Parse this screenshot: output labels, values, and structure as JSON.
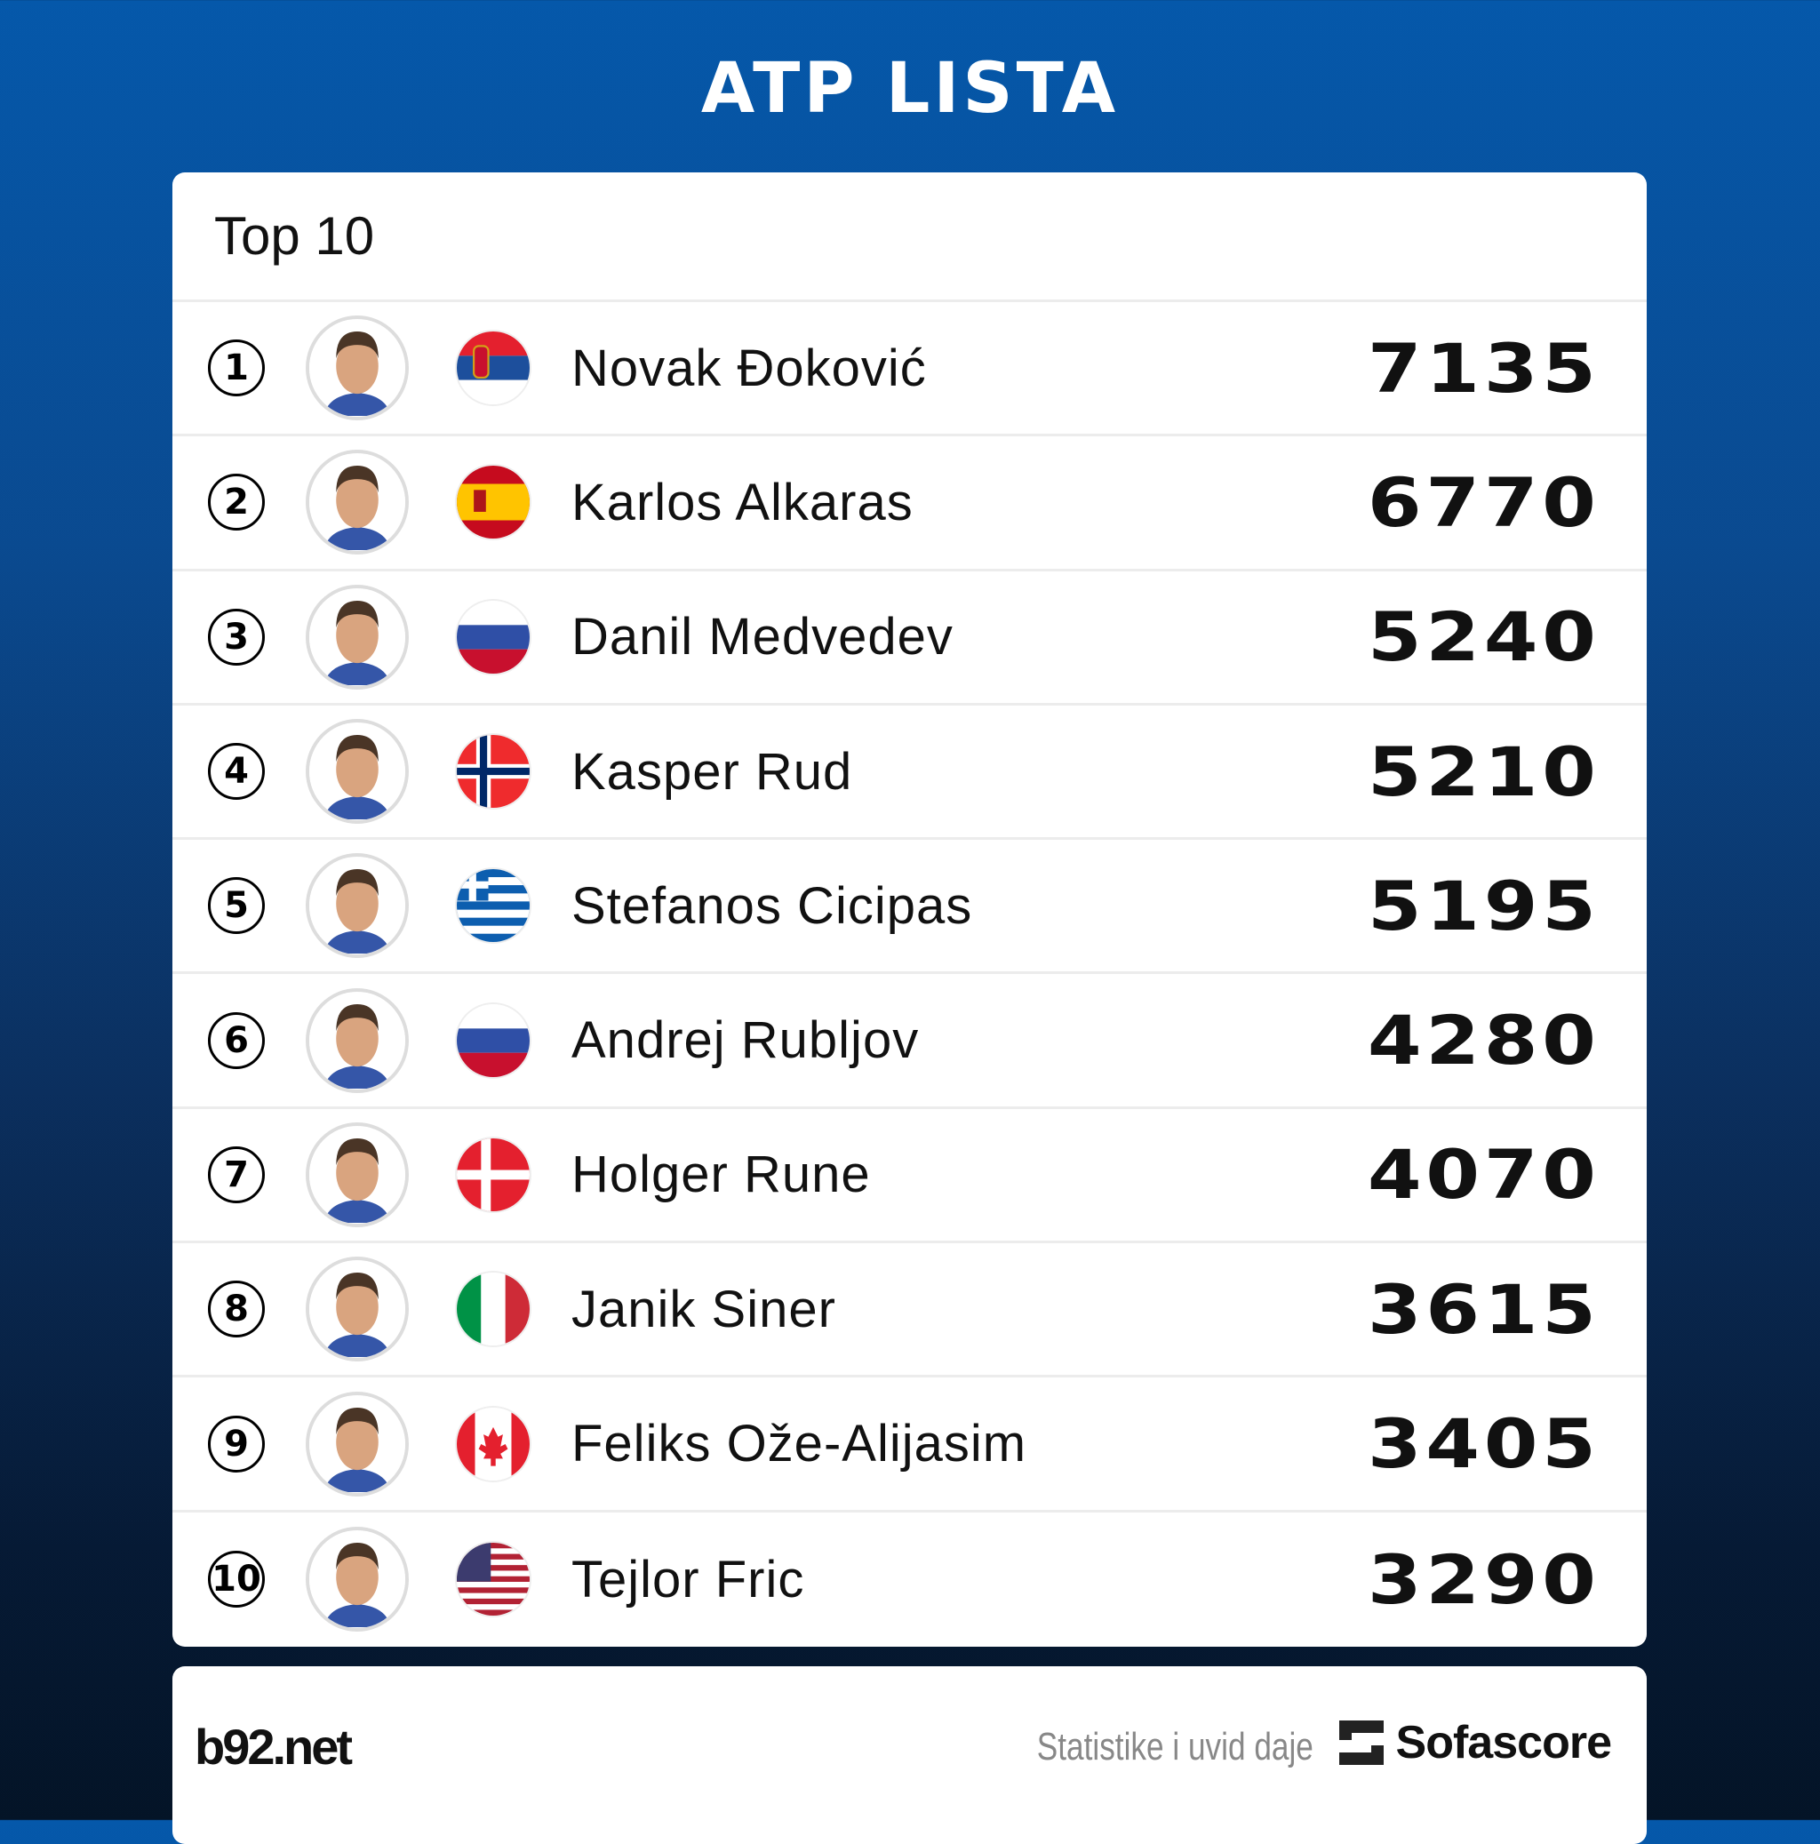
{
  "title": "ATP LISTA",
  "card_title": "Top 10",
  "players": [
    {
      "rank": "1",
      "name": "Novak Đoković",
      "points": "7135",
      "flag": "serbia"
    },
    {
      "rank": "2",
      "name": "Karlos Alkaras",
      "points": "6770",
      "flag": "spain"
    },
    {
      "rank": "3",
      "name": "Danil Medvedev",
      "points": "5240",
      "flag": "russia"
    },
    {
      "rank": "4",
      "name": "Kasper Rud",
      "points": "5210",
      "flag": "norway"
    },
    {
      "rank": "5",
      "name": "Stefanos Cicipas",
      "points": "5195",
      "flag": "greece"
    },
    {
      "rank": "6",
      "name": "Andrej Rubljov",
      "points": "4280",
      "flag": "russia"
    },
    {
      "rank": "7",
      "name": "Holger Rune",
      "points": "4070",
      "flag": "denmark"
    },
    {
      "rank": "8",
      "name": "Janik Siner",
      "points": "3615",
      "flag": "italy"
    },
    {
      "rank": "9",
      "name": "Feliks Ože-Alijasim",
      "points": "3405",
      "flag": "canada"
    },
    {
      "rank": "10",
      "name": "Tejlor Fric",
      "points": "3290",
      "flag": "usa"
    }
  ],
  "footer": {
    "logo": "b92.net",
    "credit": "Statistike i uvid daje",
    "brand": "Sofascore"
  }
}
